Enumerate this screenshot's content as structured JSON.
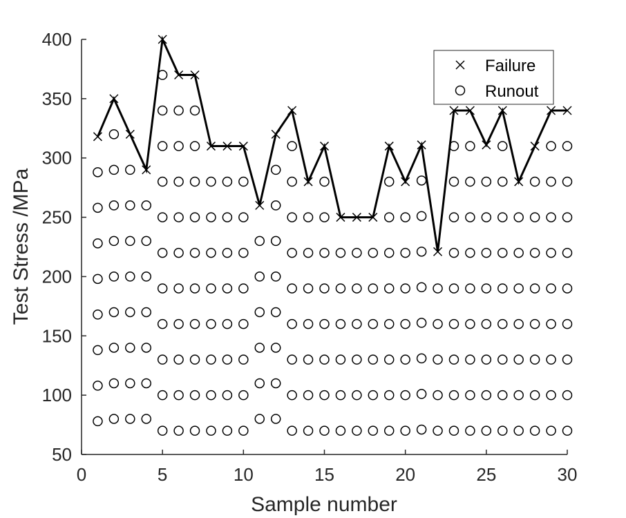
{
  "chart_data": {
    "type": "scatter",
    "title": "",
    "xlabel": "Sample number",
    "ylabel": "Test Stress /MPa",
    "xlim": [
      0,
      30
    ],
    "ylim": [
      50,
      400
    ],
    "xticks": [
      0,
      5,
      10,
      15,
      20,
      25,
      30
    ],
    "yticks": [
      50,
      100,
      150,
      200,
      250,
      300,
      350,
      400
    ],
    "grid": false,
    "legend_position": "top-right",
    "series": [
      {
        "name": "Failure",
        "marker": "x",
        "connected_by_line": true,
        "color": "#000000",
        "x": [
          1,
          2,
          3,
          4,
          5,
          6,
          7,
          8,
          9,
          10,
          11,
          12,
          13,
          14,
          15,
          16,
          17,
          18,
          19,
          20,
          21,
          22,
          23,
          24,
          25,
          26,
          27,
          28,
          29,
          30
        ],
        "y": [
          318,
          350,
          320,
          290,
          400,
          370,
          370,
          310,
          310,
          310,
          260,
          320,
          340,
          280,
          310,
          250,
          250,
          250,
          310,
          280,
          311,
          221,
          340,
          340,
          311,
          340,
          280,
          310,
          340,
          340
        ]
      },
      {
        "name": "Runout",
        "marker": "o",
        "color": "#000000",
        "columns": [
          {
            "x": 1,
            "y": [
              288,
              258,
              228,
              198,
              168,
              138,
              108,
              78
            ]
          },
          {
            "x": 2,
            "y": [
              320,
              290,
              260,
              230,
              200,
              170,
              140,
              110,
              80
            ]
          },
          {
            "x": 3,
            "y": [
              290,
              260,
              230,
              200,
              170,
              140,
              110,
              80
            ]
          },
          {
            "x": 4,
            "y": [
              260,
              230,
              200,
              170,
              140,
              110,
              80
            ]
          },
          {
            "x": 5,
            "y": [
              370,
              340,
              310,
              280,
              250,
              220,
              190,
              160,
              130,
              100,
              70
            ]
          },
          {
            "x": 6,
            "y": [
              340,
              310,
              280,
              250,
              220,
              190,
              160,
              130,
              100,
              70
            ]
          },
          {
            "x": 7,
            "y": [
              340,
              310,
              280,
              250,
              220,
              190,
              160,
              130,
              100,
              70
            ]
          },
          {
            "x": 8,
            "y": [
              280,
              250,
              220,
              190,
              160,
              130,
              100,
              70
            ]
          },
          {
            "x": 9,
            "y": [
              280,
              250,
              220,
              190,
              160,
              130,
              100,
              70
            ]
          },
          {
            "x": 10,
            "y": [
              280,
              250,
              220,
              190,
              160,
              130,
              100,
              70
            ]
          },
          {
            "x": 11,
            "y": [
              230,
              200,
              170,
              140,
              110,
              80
            ]
          },
          {
            "x": 12,
            "y": [
              290,
              260,
              230,
              200,
              170,
              140,
              110,
              80
            ]
          },
          {
            "x": 13,
            "y": [
              310,
              280,
              250,
              220,
              190,
              160,
              130,
              100,
              70
            ]
          },
          {
            "x": 14,
            "y": [
              250,
              220,
              190,
              160,
              130,
              100,
              70
            ]
          },
          {
            "x": 15,
            "y": [
              280,
              250,
              220,
              190,
              160,
              130,
              100,
              70
            ]
          },
          {
            "x": 16,
            "y": [
              220,
              190,
              160,
              130,
              100,
              70
            ]
          },
          {
            "x": 17,
            "y": [
              220,
              190,
              160,
              130,
              100,
              70
            ]
          },
          {
            "x": 18,
            "y": [
              220,
              190,
              160,
              130,
              100,
              70
            ]
          },
          {
            "x": 19,
            "y": [
              280,
              250,
              220,
              190,
              160,
              130,
              100,
              70
            ]
          },
          {
            "x": 20,
            "y": [
              250,
              220,
              190,
              160,
              130,
              100,
              70
            ]
          },
          {
            "x": 21,
            "y": [
              281,
              251,
              221,
              191,
              161,
              131,
              101,
              71
            ]
          },
          {
            "x": 22,
            "y": [
              190,
              160,
              130,
              100,
              70
            ]
          },
          {
            "x": 23,
            "y": [
              310,
              280,
              250,
              220,
              190,
              160,
              130,
              100,
              70
            ]
          },
          {
            "x": 24,
            "y": [
              310,
              280,
              250,
              220,
              190,
              160,
              130,
              100,
              70
            ]
          },
          {
            "x": 25,
            "y": [
              280,
              250,
              220,
              190,
              160,
              130,
              100,
              70
            ]
          },
          {
            "x": 26,
            "y": [
              310,
              280,
              250,
              220,
              190,
              160,
              130,
              100,
              70
            ]
          },
          {
            "x": 27,
            "y": [
              250,
              220,
              190,
              160,
              130,
              100,
              70
            ]
          },
          {
            "x": 28,
            "y": [
              280,
              250,
              220,
              190,
              160,
              130,
              100,
              70
            ]
          },
          {
            "x": 29,
            "y": [
              310,
              280,
              250,
              220,
              190,
              160,
              130,
              100,
              70
            ]
          },
          {
            "x": 30,
            "y": [
              310,
              280,
              250,
              220,
              190,
              160,
              130,
              100,
              70
            ]
          }
        ]
      }
    ]
  }
}
